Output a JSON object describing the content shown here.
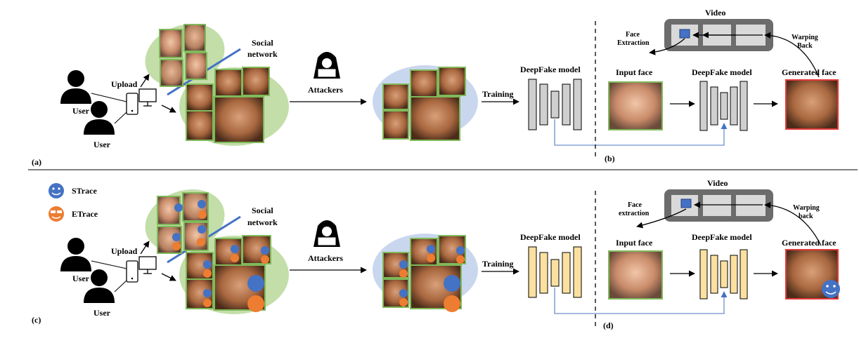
{
  "panel_a": {
    "label": "(a)",
    "user_1": "User",
    "user_2": "User",
    "upload": "Upload",
    "social_1": "Social",
    "social_2": "network",
    "attackers": "Attackers",
    "training": "Training",
    "deepfake_model": "DeepFake model"
  },
  "panel_b": {
    "label": "(b)",
    "video": "Video",
    "face_extraction_1": "Face",
    "face_extraction_2": "Extraction",
    "warping_1": "Warping",
    "warping_2": "Back",
    "input_face": "Input face",
    "deepfake_model": "DeepFake model",
    "generated_face": "Generated face"
  },
  "panel_c": {
    "label": "(c)",
    "legend_strace": "STrace",
    "legend_etrace": "ETrace",
    "user_1": "User",
    "user_2": "User",
    "upload": "Upload",
    "social_1": "Social",
    "social_2": "network",
    "attackers": "Attackers",
    "training": "Training",
    "deepfake_model": "DeepFake model"
  },
  "panel_d": {
    "label": "(d)",
    "video": "Video",
    "face_extraction_1": "Face",
    "face_extraction_2": "extraction",
    "warping_1": "Warping",
    "warping_2": "back",
    "input_face": "Input face",
    "deepfake_model": "DeepFake model",
    "generated_face": "Generated face"
  },
  "colors": {
    "green_blob": "#c3dea9",
    "blue_blob": "#c9d7ee",
    "photo_border": "#7fb95a",
    "gray_block": "#cfcfcf",
    "yellow_block": "#fbe0a0",
    "strace_blue": "#4472c4",
    "etrace_orange": "#ed7d31",
    "skip_line": "#6d8fc9",
    "gen_border": "#e33b3b"
  }
}
